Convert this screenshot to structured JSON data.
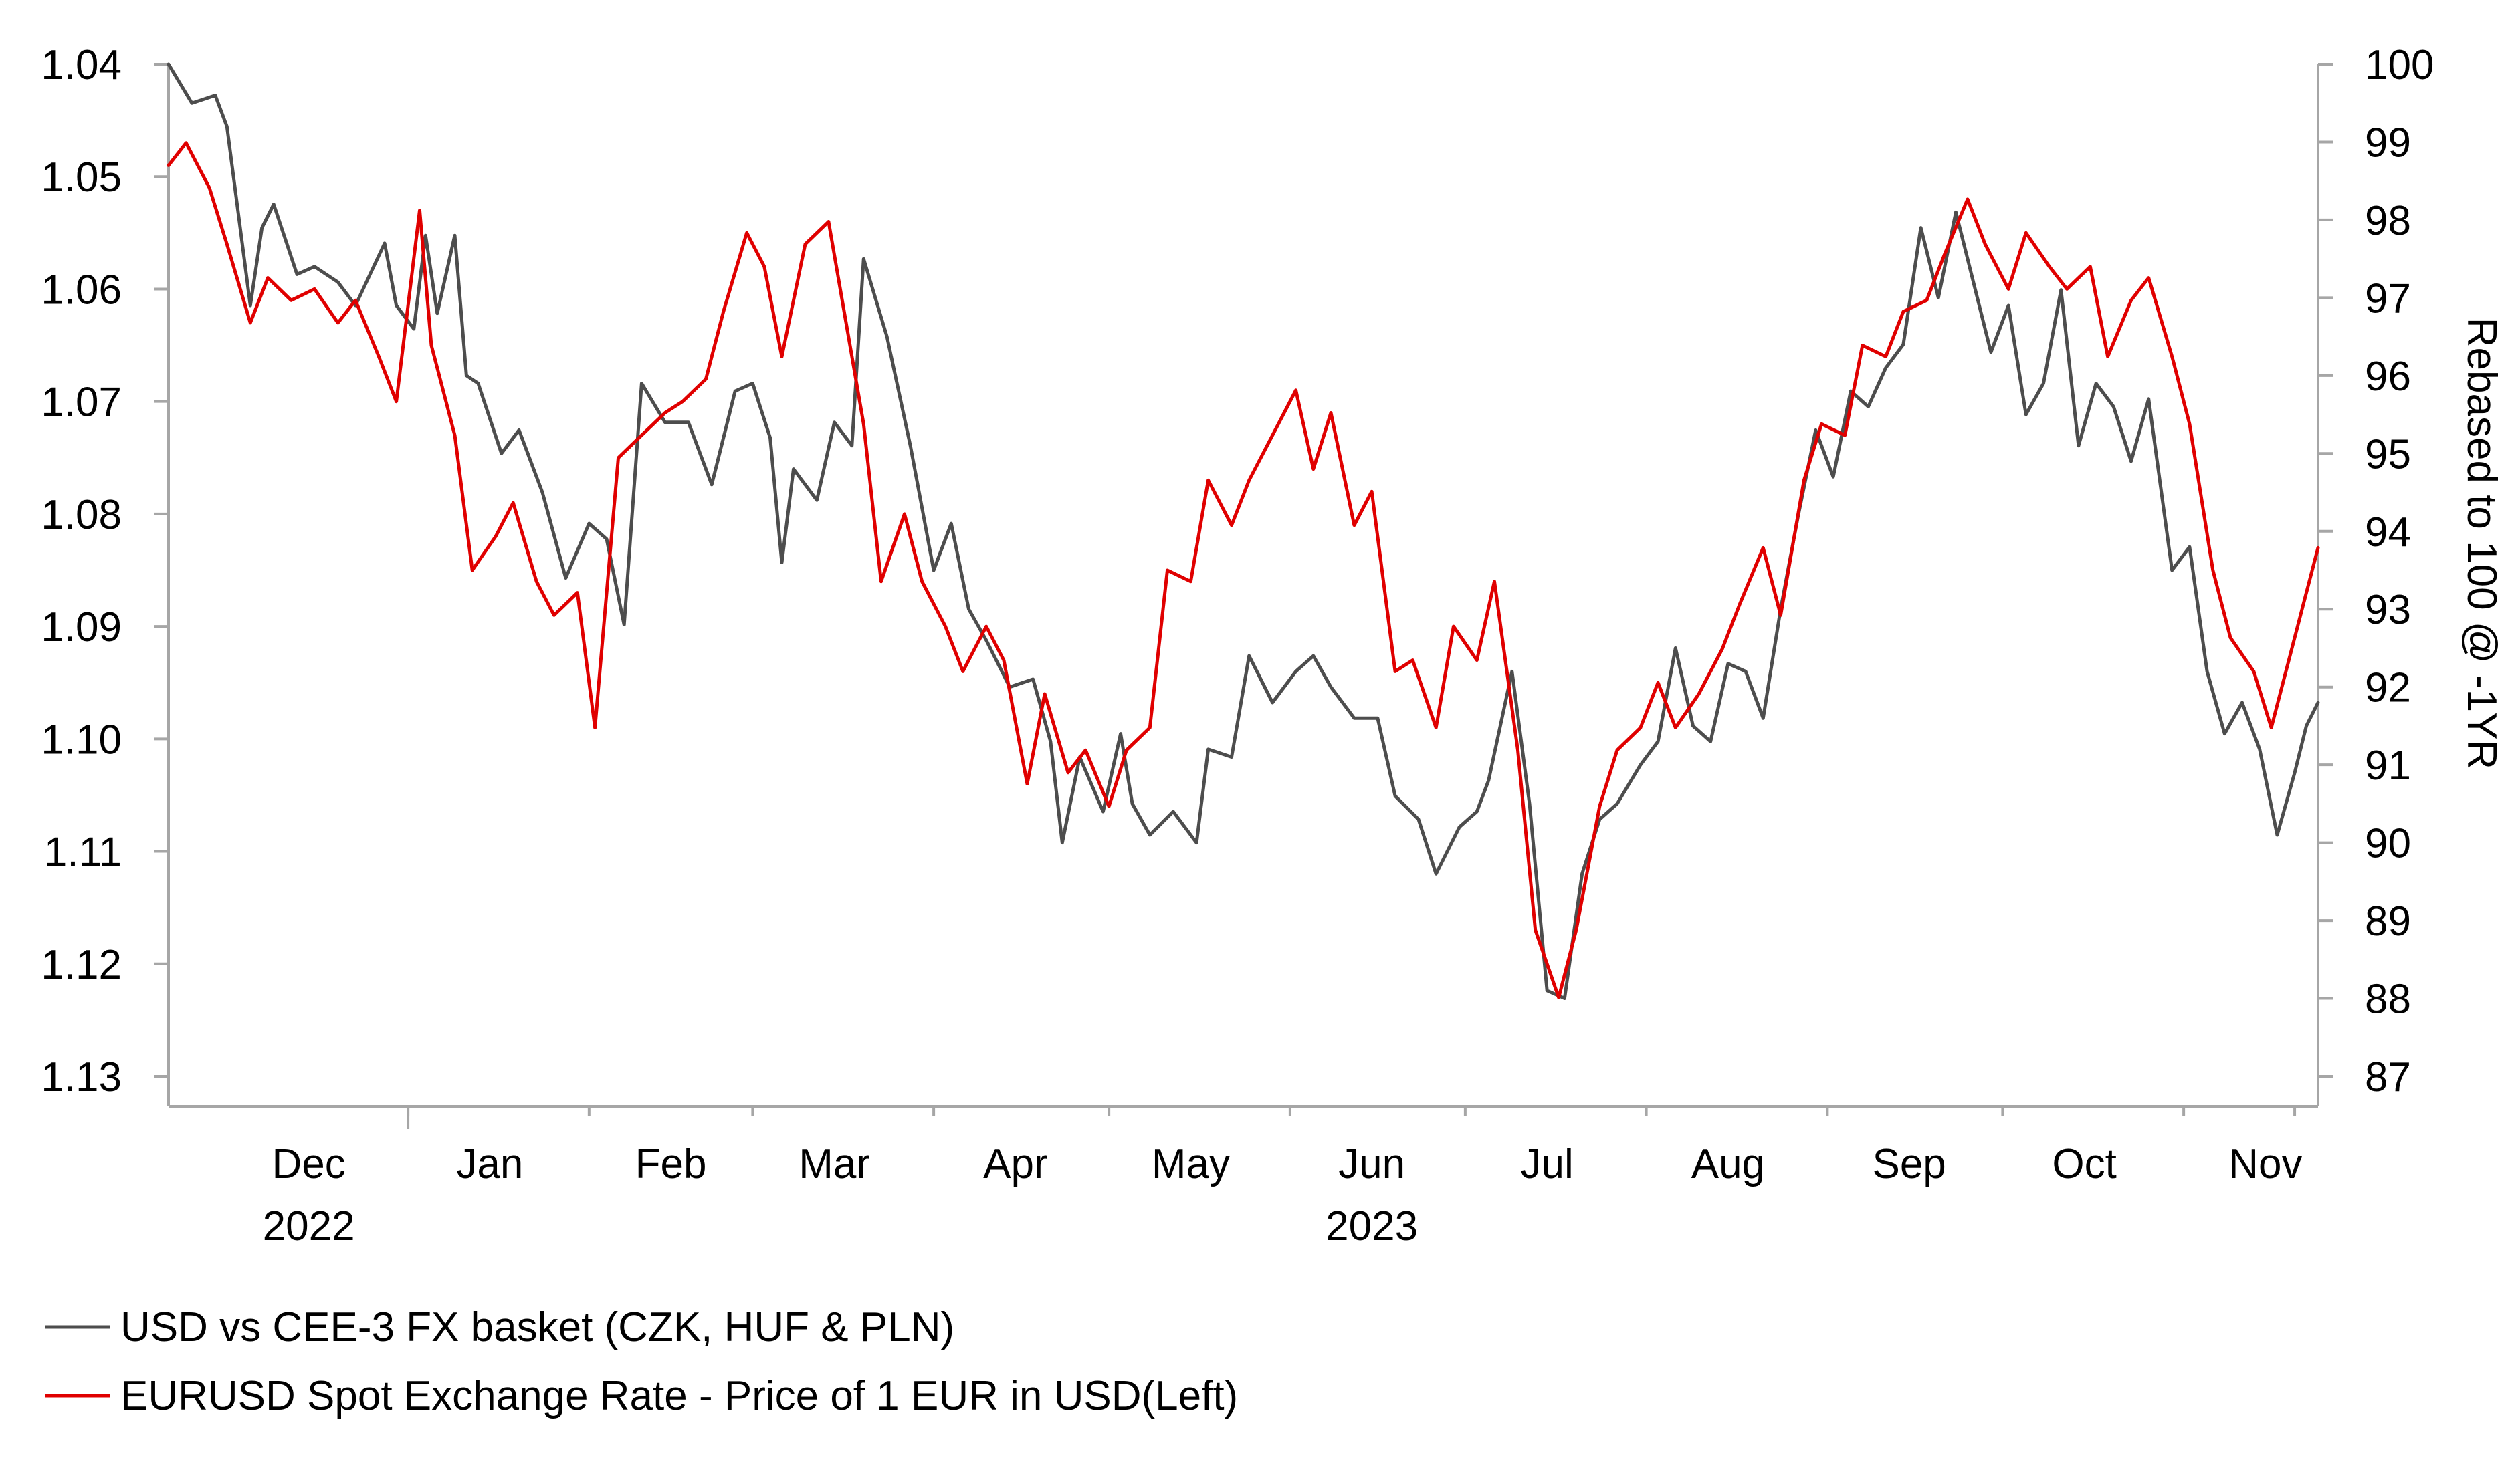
{
  "chart_data": {
    "type": "line",
    "title": "",
    "x_range": [
      "2022-11-21",
      "2023-11-24"
    ],
    "x_labels": [
      {
        "label": "Dec",
        "date": "2022-12-15"
      },
      {
        "label": "Jan",
        "date": "2023-01-15"
      },
      {
        "label": "Feb",
        "date": "2023-02-15"
      },
      {
        "label": "Mar",
        "date": "2023-03-15"
      },
      {
        "label": "Apr",
        "date": "2023-04-15"
      },
      {
        "label": "May",
        "date": "2023-05-15"
      },
      {
        "label": "Jun",
        "date": "2023-06-15"
      },
      {
        "label": "Jul",
        "date": "2023-07-15"
      },
      {
        "label": "Aug",
        "date": "2023-08-15"
      },
      {
        "label": "Sep",
        "date": "2023-09-15"
      },
      {
        "label": "Oct",
        "date": "2023-10-15"
      },
      {
        "label": "Nov",
        "date": "2023-11-15"
      }
    ],
    "year_labels": [
      {
        "label": "2022",
        "date": "2022-12-15"
      },
      {
        "label": "2023",
        "date": "2023-06-15"
      }
    ],
    "y_left": {
      "ylim": [
        1.04,
        1.13
      ],
      "inverted": true,
      "ticks": [
        "1.04",
        "1.05",
        "1.06",
        "1.07",
        "1.08",
        "1.09",
        "1.10",
        "1.11",
        "1.12",
        "1.13"
      ]
    },
    "y_right": {
      "label": "Rebased to 100 @ -1YR",
      "ylim": [
        87,
        100
      ],
      "ticks": [
        "100",
        "99",
        "98",
        "97",
        "96",
        "95",
        "94",
        "93",
        "92",
        "91",
        "90",
        "89",
        "88",
        "87"
      ]
    },
    "series": [
      {
        "name": "USD vs CEE-3 FX basket (CZK, HUF & PLN)",
        "axis": "right",
        "color": "#4d4d4d",
        "points": [
          [
            "2022-11-21",
            100.0
          ],
          [
            "2022-11-25",
            99.5
          ],
          [
            "2022-11-29",
            99.6
          ],
          [
            "2022-12-01",
            99.2
          ],
          [
            "2022-12-05",
            96.9
          ],
          [
            "2022-12-07",
            97.9
          ],
          [
            "2022-12-09",
            98.2
          ],
          [
            "2022-12-13",
            97.3
          ],
          [
            "2022-12-16",
            97.4
          ],
          [
            "2022-12-20",
            97.2
          ],
          [
            "2022-12-23",
            96.9
          ],
          [
            "2022-12-28",
            97.7
          ],
          [
            "2022-12-30",
            96.9
          ],
          [
            "2023-01-02",
            96.6
          ],
          [
            "2023-01-04",
            97.8
          ],
          [
            "2023-01-06",
            96.8
          ],
          [
            "2023-01-09",
            97.8
          ],
          [
            "2023-01-11",
            96.0
          ],
          [
            "2023-01-13",
            95.9
          ],
          [
            "2023-01-17",
            95.0
          ],
          [
            "2023-01-20",
            95.3
          ],
          [
            "2023-01-24",
            94.5
          ],
          [
            "2023-01-28",
            93.4
          ],
          [
            "2023-02-01",
            94.1
          ],
          [
            "2023-02-04",
            93.9
          ],
          [
            "2023-02-07",
            92.8
          ],
          [
            "2023-02-10",
            95.9
          ],
          [
            "2023-02-14",
            95.4
          ],
          [
            "2023-02-18",
            95.4
          ],
          [
            "2023-02-22",
            94.6
          ],
          [
            "2023-02-26",
            95.8
          ],
          [
            "2023-03-01",
            95.9
          ],
          [
            "2023-03-04",
            95.2
          ],
          [
            "2023-03-06",
            93.6
          ],
          [
            "2023-03-08",
            94.8
          ],
          [
            "2023-03-12",
            94.4
          ],
          [
            "2023-03-15",
            95.4
          ],
          [
            "2023-03-18",
            95.1
          ],
          [
            "2023-03-20",
            97.5
          ],
          [
            "2023-03-24",
            96.5
          ],
          [
            "2023-03-28",
            95.1
          ],
          [
            "2023-04-01",
            93.5
          ],
          [
            "2023-04-04",
            94.1
          ],
          [
            "2023-04-07",
            93.0
          ],
          [
            "2023-04-10",
            92.6
          ],
          [
            "2023-04-14",
            92.0
          ],
          [
            "2023-04-18",
            92.1
          ],
          [
            "2023-04-21",
            91.3
          ],
          [
            "2023-04-23",
            90.0
          ],
          [
            "2023-04-26",
            91.1
          ],
          [
            "2023-04-30",
            90.4
          ],
          [
            "2023-05-03",
            91.4
          ],
          [
            "2023-05-05",
            90.5
          ],
          [
            "2023-05-08",
            90.1
          ],
          [
            "2023-05-12",
            90.4
          ],
          [
            "2023-05-16",
            90.0
          ],
          [
            "2023-05-18",
            91.2
          ],
          [
            "2023-05-22",
            91.1
          ],
          [
            "2023-05-25",
            92.4
          ],
          [
            "2023-05-29",
            91.8
          ],
          [
            "2023-06-02",
            92.2
          ],
          [
            "2023-06-05",
            92.4
          ],
          [
            "2023-06-08",
            92.0
          ],
          [
            "2023-06-12",
            91.6
          ],
          [
            "2023-06-16",
            91.6
          ],
          [
            "2023-06-19",
            90.6
          ],
          [
            "2023-06-23",
            90.3
          ],
          [
            "2023-06-26",
            89.6
          ],
          [
            "2023-06-30",
            90.2
          ],
          [
            "2023-07-03",
            90.4
          ],
          [
            "2023-07-05",
            90.8
          ],
          [
            "2023-07-09",
            92.2
          ],
          [
            "2023-07-12",
            90.5
          ],
          [
            "2023-07-15",
            88.1
          ],
          [
            "2023-07-18",
            88.0
          ],
          [
            "2023-07-21",
            89.6
          ],
          [
            "2023-07-24",
            90.3
          ],
          [
            "2023-07-27",
            90.5
          ],
          [
            "2023-07-31",
            91.0
          ],
          [
            "2023-08-03",
            91.3
          ],
          [
            "2023-08-06",
            92.5
          ],
          [
            "2023-08-09",
            91.5
          ],
          [
            "2023-08-12",
            91.3
          ],
          [
            "2023-08-15",
            92.3
          ],
          [
            "2023-08-18",
            92.2
          ],
          [
            "2023-08-21",
            91.6
          ],
          [
            "2023-08-24",
            93.0
          ],
          [
            "2023-08-27",
            94.2
          ],
          [
            "2023-08-30",
            95.3
          ],
          [
            "2023-09-02",
            94.7
          ],
          [
            "2023-09-05",
            95.8
          ],
          [
            "2023-09-08",
            95.6
          ],
          [
            "2023-09-11",
            96.1
          ],
          [
            "2023-09-14",
            96.4
          ],
          [
            "2023-09-17",
            97.9
          ],
          [
            "2023-09-20",
            97.0
          ],
          [
            "2023-09-23",
            98.1
          ],
          [
            "2023-09-26",
            97.2
          ],
          [
            "2023-09-29",
            96.3
          ],
          [
            "2023-10-02",
            96.9
          ],
          [
            "2023-10-05",
            95.5
          ],
          [
            "2023-10-08",
            95.9
          ],
          [
            "2023-10-11",
            97.1
          ],
          [
            "2023-10-14",
            95.1
          ],
          [
            "2023-10-17",
            95.9
          ],
          [
            "2023-10-20",
            95.6
          ],
          [
            "2023-10-23",
            94.9
          ],
          [
            "2023-10-26",
            95.7
          ],
          [
            "2023-10-30",
            93.5
          ],
          [
            "2023-11-02",
            93.8
          ],
          [
            "2023-11-05",
            92.2
          ],
          [
            "2023-11-08",
            91.4
          ],
          [
            "2023-11-11",
            91.8
          ],
          [
            "2023-11-14",
            91.2
          ],
          [
            "2023-11-17",
            90.1
          ],
          [
            "2023-11-20",
            90.9
          ],
          [
            "2023-11-22",
            91.5
          ],
          [
            "2023-11-24",
            91.8
          ]
        ]
      },
      {
        "name": "EURUSD Spot Exchange Rate - Price of 1 EUR in USD(Left)",
        "axis": "left",
        "color": "#e00000",
        "points": [
          [
            "2022-11-21",
            1.049
          ],
          [
            "2022-11-24",
            1.047
          ],
          [
            "2022-11-28",
            1.051
          ],
          [
            "2022-12-01",
            1.056
          ],
          [
            "2022-12-05",
            1.063
          ],
          [
            "2022-12-08",
            1.059
          ],
          [
            "2022-12-12",
            1.061
          ],
          [
            "2022-12-16",
            1.06
          ],
          [
            "2022-12-20",
            1.063
          ],
          [
            "2022-12-23",
            1.061
          ],
          [
            "2022-12-27",
            1.066
          ],
          [
            "2022-12-30",
            1.07
          ],
          [
            "2023-01-03",
            1.053
          ],
          [
            "2023-01-05",
            1.065
          ],
          [
            "2023-01-09",
            1.073
          ],
          [
            "2023-01-12",
            1.085
          ],
          [
            "2023-01-16",
            1.082
          ],
          [
            "2023-01-19",
            1.079
          ],
          [
            "2023-01-23",
            1.086
          ],
          [
            "2023-01-26",
            1.089
          ],
          [
            "2023-01-30",
            1.087
          ],
          [
            "2023-02-02",
            1.099
          ],
          [
            "2023-02-06",
            1.075
          ],
          [
            "2023-02-10",
            1.073
          ],
          [
            "2023-02-14",
            1.071
          ],
          [
            "2023-02-17",
            1.07
          ],
          [
            "2023-02-21",
            1.068
          ],
          [
            "2023-02-24",
            1.062
          ],
          [
            "2023-02-28",
            1.055
          ],
          [
            "2023-03-03",
            1.058
          ],
          [
            "2023-03-06",
            1.066
          ],
          [
            "2023-03-10",
            1.056
          ],
          [
            "2023-03-14",
            1.054
          ],
          [
            "2023-03-17",
            1.063
          ],
          [
            "2023-03-20",
            1.072
          ],
          [
            "2023-03-23",
            1.086
          ],
          [
            "2023-03-27",
            1.08
          ],
          [
            "2023-03-30",
            1.086
          ],
          [
            "2023-04-03",
            1.09
          ],
          [
            "2023-04-06",
            1.094
          ],
          [
            "2023-04-10",
            1.09
          ],
          [
            "2023-04-13",
            1.093
          ],
          [
            "2023-04-17",
            1.104
          ],
          [
            "2023-04-20",
            1.096
          ],
          [
            "2023-04-24",
            1.103
          ],
          [
            "2023-04-27",
            1.101
          ],
          [
            "2023-05-01",
            1.106
          ],
          [
            "2023-05-04",
            1.101
          ],
          [
            "2023-05-08",
            1.099
          ],
          [
            "2023-05-11",
            1.085
          ],
          [
            "2023-05-15",
            1.086
          ],
          [
            "2023-05-18",
            1.077
          ],
          [
            "2023-05-22",
            1.081
          ],
          [
            "2023-05-25",
            1.077
          ],
          [
            "2023-05-29",
            1.073
          ],
          [
            "2023-06-02",
            1.069
          ],
          [
            "2023-06-05",
            1.076
          ],
          [
            "2023-06-08",
            1.071
          ],
          [
            "2023-06-12",
            1.081
          ],
          [
            "2023-06-15",
            1.078
          ],
          [
            "2023-06-19",
            1.094
          ],
          [
            "2023-06-22",
            1.093
          ],
          [
            "2023-06-26",
            1.099
          ],
          [
            "2023-06-29",
            1.09
          ],
          [
            "2023-07-03",
            1.093
          ],
          [
            "2023-07-06",
            1.086
          ],
          [
            "2023-07-10",
            1.101
          ],
          [
            "2023-07-13",
            1.117
          ],
          [
            "2023-07-17",
            1.123
          ],
          [
            "2023-07-20",
            1.117
          ],
          [
            "2023-07-24",
            1.106
          ],
          [
            "2023-07-27",
            1.101
          ],
          [
            "2023-07-31",
            1.099
          ],
          [
            "2023-08-03",
            1.095
          ],
          [
            "2023-08-06",
            1.099
          ],
          [
            "2023-08-10",
            1.096
          ],
          [
            "2023-08-14",
            1.092
          ],
          [
            "2023-08-17",
            1.088
          ],
          [
            "2023-08-21",
            1.083
          ],
          [
            "2023-08-24",
            1.089
          ],
          [
            "2023-08-28",
            1.077
          ],
          [
            "2023-08-31",
            1.072
          ],
          [
            "2023-09-04",
            1.073
          ],
          [
            "2023-09-07",
            1.065
          ],
          [
            "2023-09-11",
            1.066
          ],
          [
            "2023-09-14",
            1.062
          ],
          [
            "2023-09-18",
            1.061
          ],
          [
            "2023-09-21",
            1.057
          ],
          [
            "2023-09-25",
            1.052
          ],
          [
            "2023-09-28",
            1.056
          ],
          [
            "2023-10-02",
            1.06
          ],
          [
            "2023-10-05",
            1.055
          ],
          [
            "2023-10-09",
            1.058
          ],
          [
            "2023-10-12",
            1.06
          ],
          [
            "2023-10-16",
            1.058
          ],
          [
            "2023-10-19",
            1.066
          ],
          [
            "2023-10-23",
            1.061
          ],
          [
            "2023-10-26",
            1.059
          ],
          [
            "2023-10-30",
            1.066
          ],
          [
            "2023-11-02",
            1.072
          ],
          [
            "2023-11-06",
            1.085
          ],
          [
            "2023-11-09",
            1.091
          ],
          [
            "2023-11-13",
            1.094
          ],
          [
            "2023-11-16",
            1.099
          ],
          [
            "2023-11-19",
            1.093
          ],
          [
            "2023-11-22",
            1.087
          ],
          [
            "2023-11-24",
            1.083
          ]
        ]
      }
    ],
    "legend": {
      "placement": "bottom-left",
      "entries": [
        "USD vs CEE-3 FX basket (CZK, HUF & PLN)",
        "EURUSD Spot Exchange Rate - Price of 1 EUR in USD(Left)"
      ]
    },
    "grid": false
  }
}
